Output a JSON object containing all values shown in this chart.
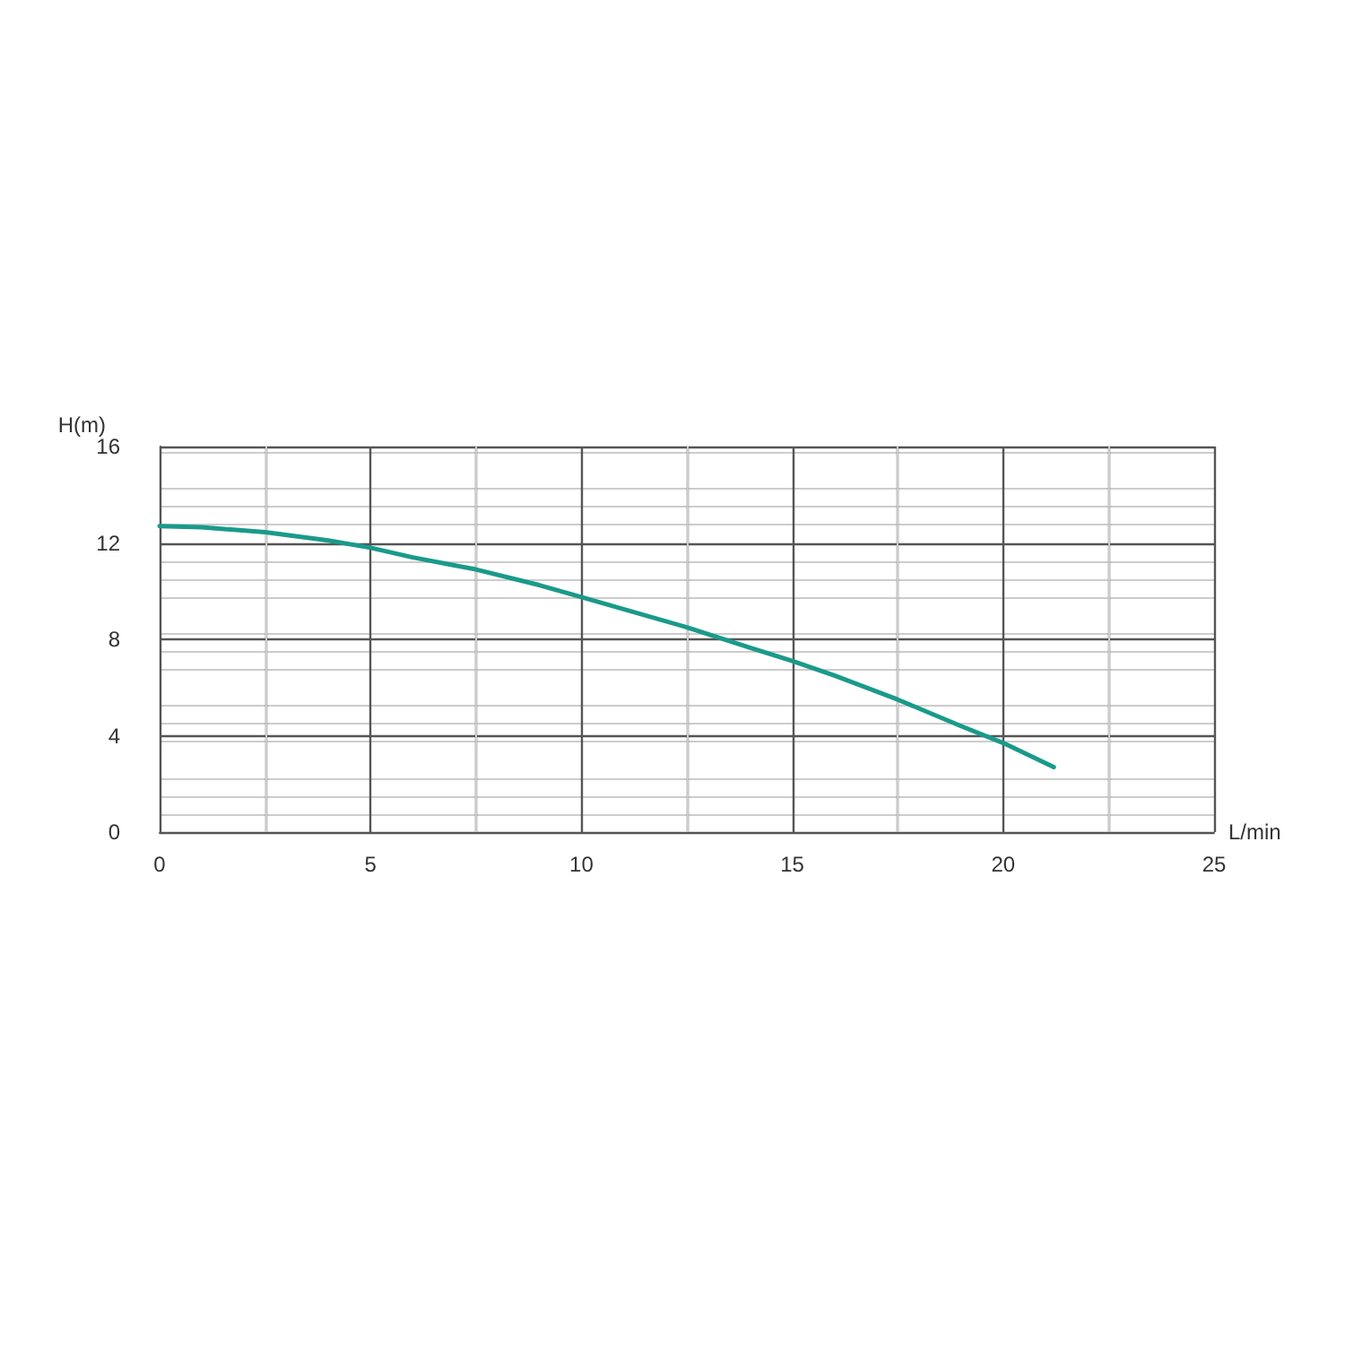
{
  "chart_data": {
    "type": "line",
    "xlabel": "L/min",
    "ylabel": "H(m)",
    "x": [
      0,
      1,
      2.5,
      4,
      5,
      6,
      7.5,
      9,
      10,
      11,
      12.5,
      14,
      15,
      16,
      17.5,
      19,
      20,
      21.2
    ],
    "series": [
      {
        "color": "#1a9a8a",
        "values": [
          12.7,
          12.65,
          12.45,
          12.1,
          11.8,
          11.4,
          10.9,
          10.25,
          9.75,
          9.25,
          8.5,
          7.65,
          7.1,
          6.5,
          5.5,
          4.4,
          3.7,
          2.7
        ]
      }
    ],
    "xlim": [
      0,
      25
    ],
    "xticks": [
      0,
      {
        "value": 2.5,
        "label": null
      },
      5,
      {
        "value": 7.5,
        "label": null
      },
      10,
      {
        "value": 12.5,
        "label": null
      },
      15,
      {
        "value": 17.5,
        "label": null
      },
      20,
      {
        "value": 22.5,
        "label": null
      },
      25
    ],
    "ylim": [
      0,
      16
    ],
    "yticks": [
      0,
      4,
      8,
      12,
      16
    ],
    "grid": true,
    "marker": "none",
    "line_style": "solid"
  }
}
